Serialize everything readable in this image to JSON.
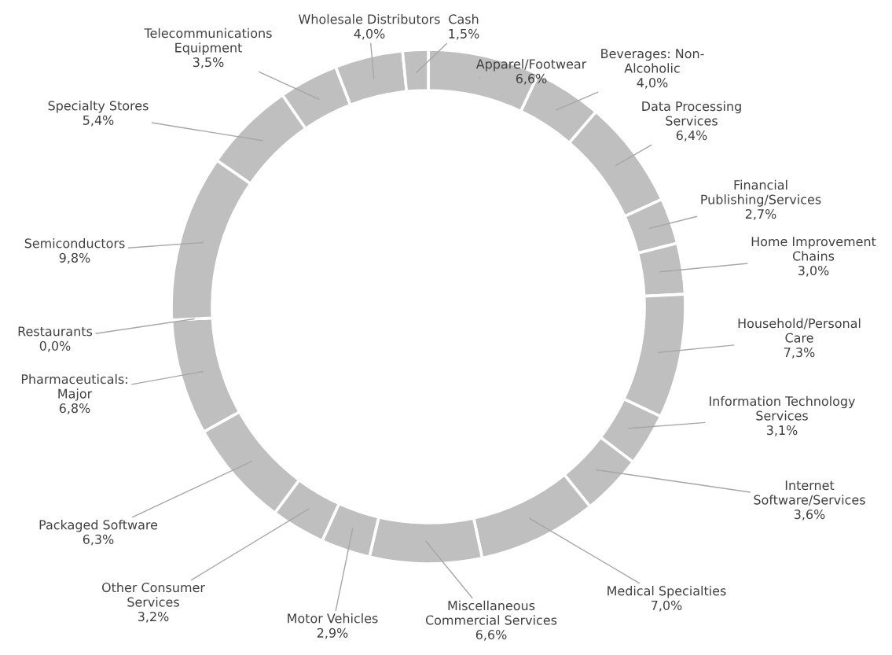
{
  "chart_data": {
    "type": "donut",
    "categories": [
      "Apparel/Footwear",
      "Beverages: Non-\nAlcoholic",
      "Data Processing\nServices",
      "Financial\nPublishing/Services",
      "Home Improvement\nChains",
      "Household/Personal\nCare",
      "Information Technology\nServices",
      "Internet\nSoftware/Services",
      "Medical Specialties",
      "Miscellaneous\nCommercial Services",
      "Motor Vehicles",
      "Other Consumer\nServices",
      "Packaged Software",
      "Pharmaceuticals:\nMajor",
      "Restaurants",
      "Semiconductors",
      "Specialty Stores",
      "Telecommunications\nEquipment",
      "Wholesale Distributors",
      "Cash"
    ],
    "values": [
      6.6,
      4.0,
      6.4,
      2.7,
      3.0,
      7.3,
      3.1,
      3.6,
      7.0,
      6.6,
      2.9,
      3.2,
      6.3,
      6.8,
      0.0,
      9.8,
      5.4,
      3.5,
      4.0,
      1.5
    ],
    "value_labels": [
      "6,6%",
      "4,0%",
      "6,4%",
      "2,7%",
      "3,0%",
      "7,3%",
      "3,1%",
      "3,6%",
      "7,0%",
      "6,6%",
      "2,9%",
      "3,2%",
      "6,3%",
      "6,8%",
      "0,0%",
      "9,8%",
      "5,4%",
      "3,5%",
      "4,0%",
      "1,5%"
    ],
    "color": "#bfbfbf"
  }
}
